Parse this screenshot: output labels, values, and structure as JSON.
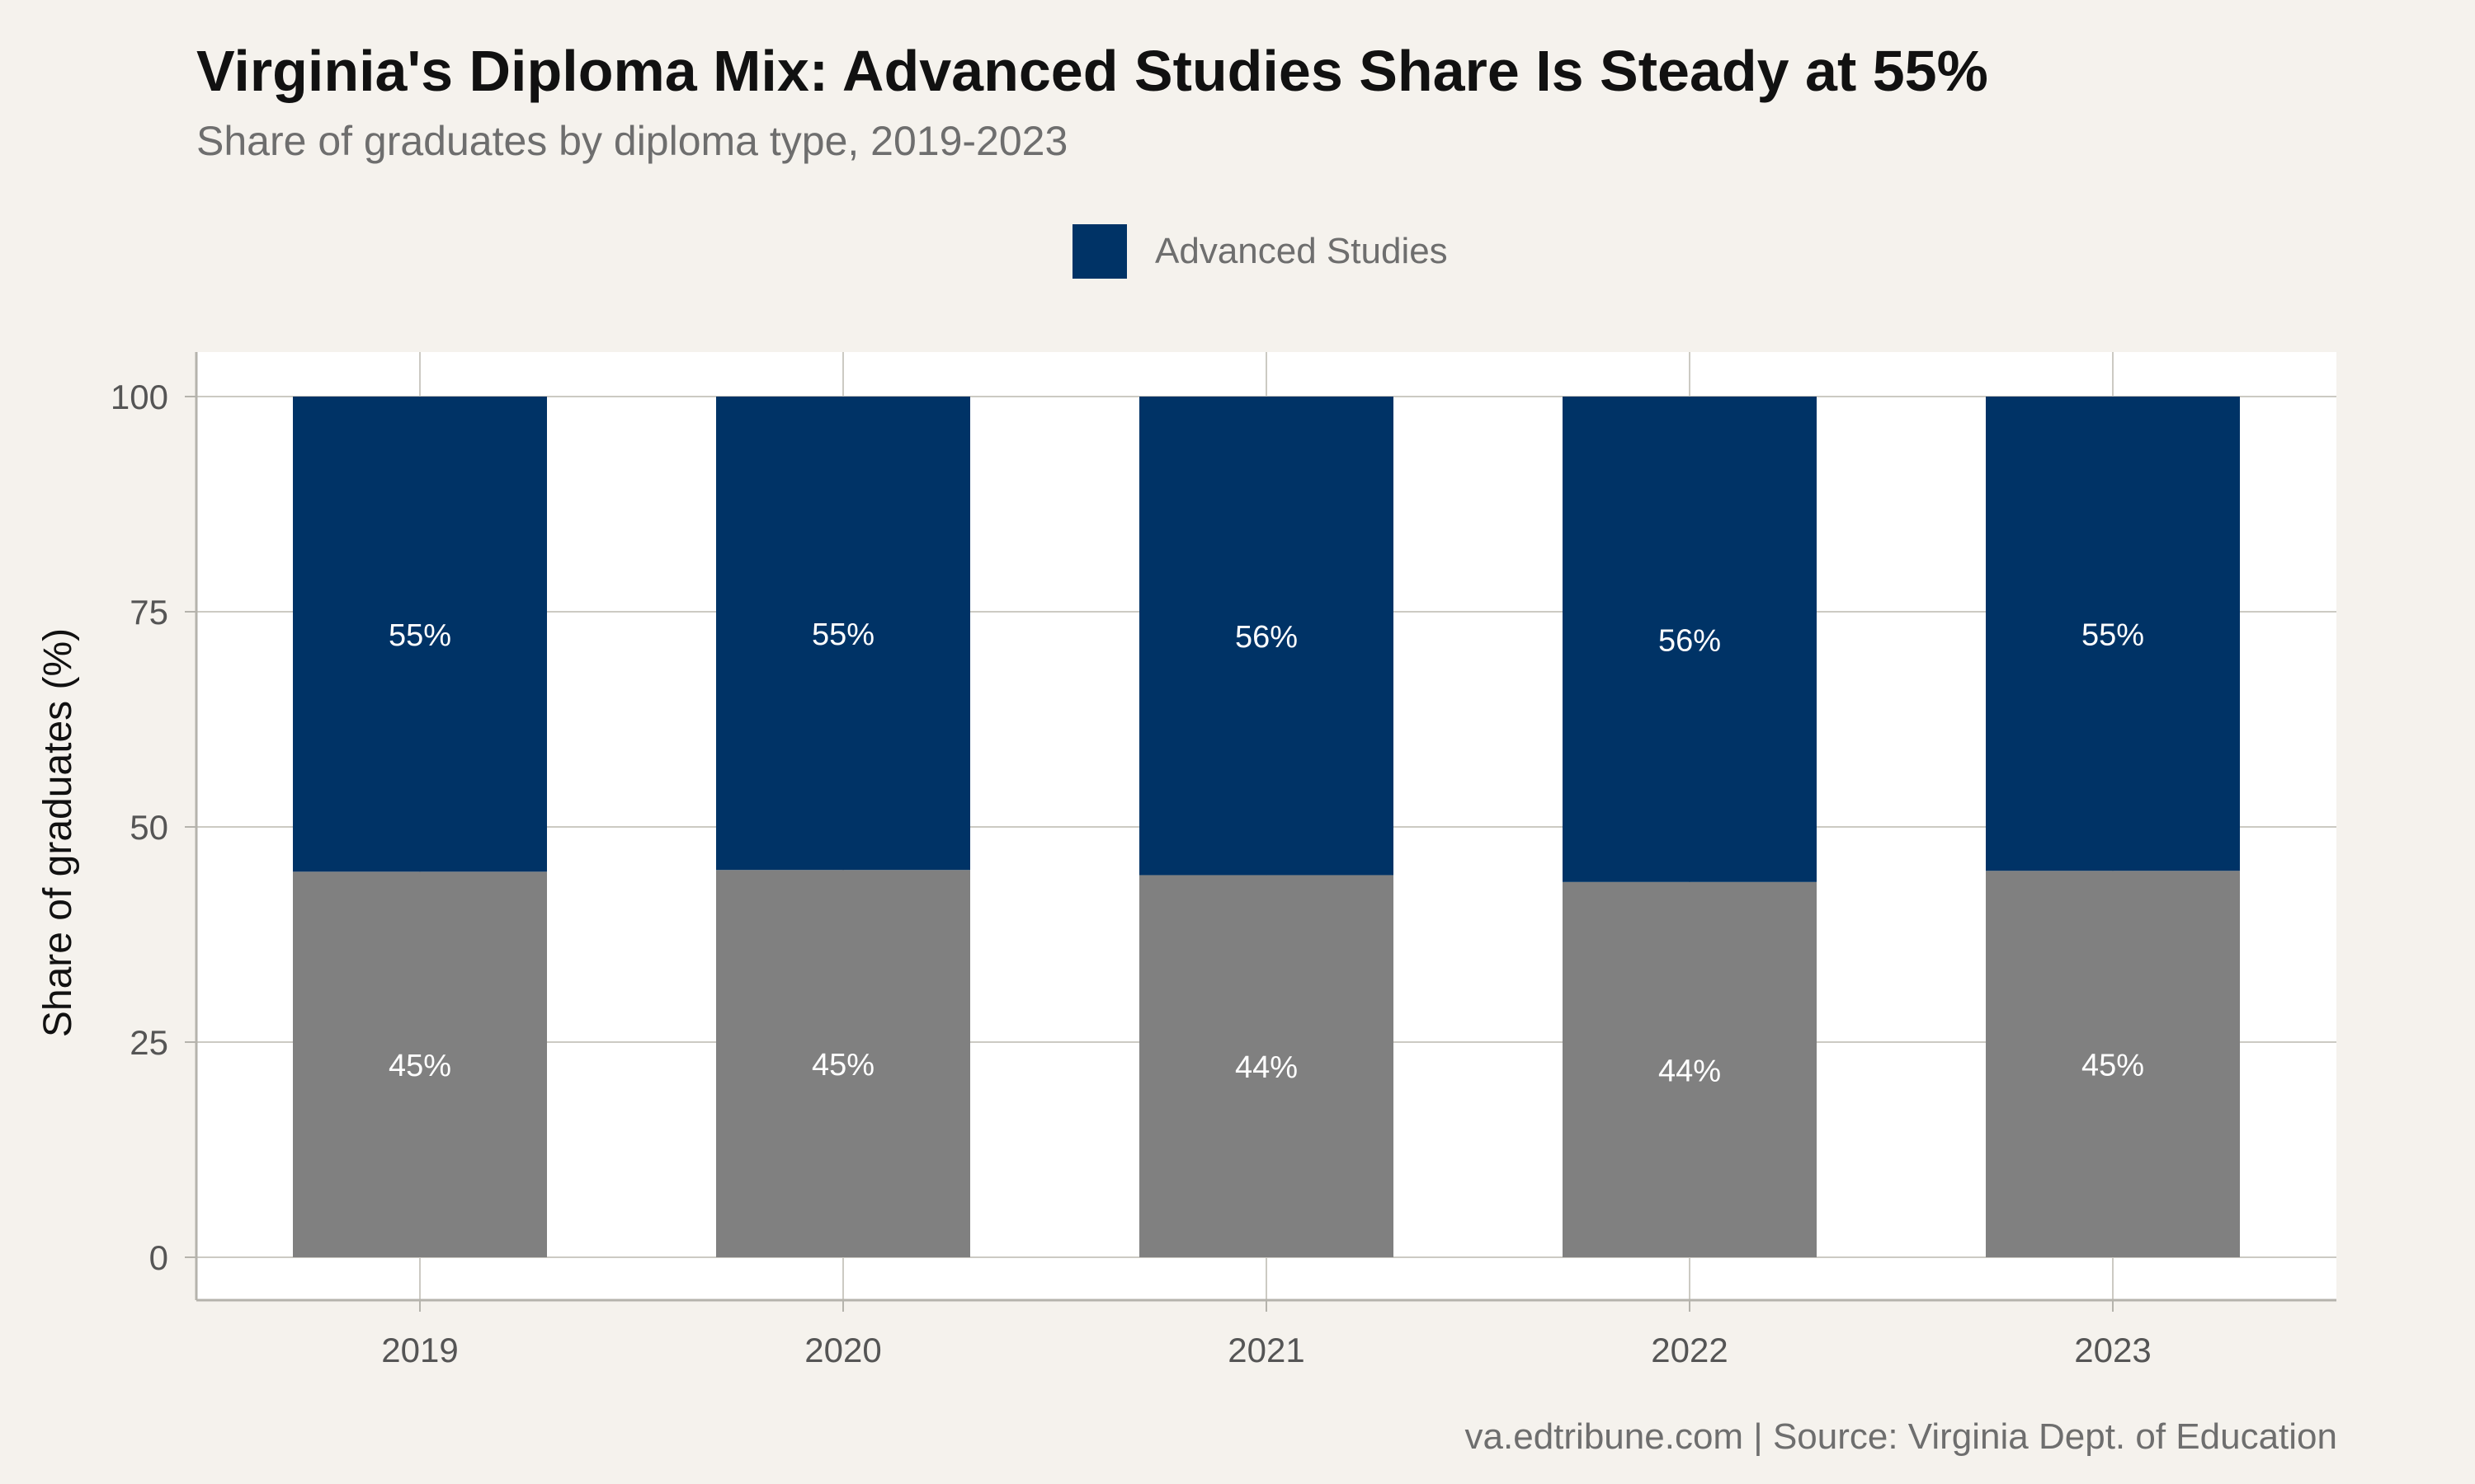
{
  "title": "Virginia's Diploma Mix: Advanced Studies Share Is Steady at 55%",
  "subtitle": "Share of graduates by diploma type, 2019-2023",
  "caption": "va.edtribune.com | Source: Virginia Dept. of Education",
  "legend": {
    "label": "Advanced Studies",
    "color": "#003366"
  },
  "chart_data": {
    "type": "bar",
    "stacked": true,
    "categories": [
      "2019",
      "2020",
      "2021",
      "2022",
      "2023"
    ],
    "series": [
      {
        "name": "",
        "color": "#808080",
        "values": [
          44.8,
          45.0,
          44.4,
          43.6,
          44.9
        ],
        "labels": [
          "45%",
          "45%",
          "44%",
          "44%",
          "45%"
        ]
      },
      {
        "name": "Advanced Studies",
        "color": "#003366",
        "values": [
          55.2,
          55.0,
          55.6,
          56.4,
          55.1
        ],
        "labels": [
          "55%",
          "55%",
          "56%",
          "56%",
          "55%"
        ]
      }
    ],
    "ylabel": "Share of graduates (%)",
    "xlabel": "",
    "ylim": [
      -5,
      105
    ],
    "yticks": [
      0,
      25,
      50,
      75,
      100
    ],
    "grid": true,
    "legend_position": "top"
  }
}
